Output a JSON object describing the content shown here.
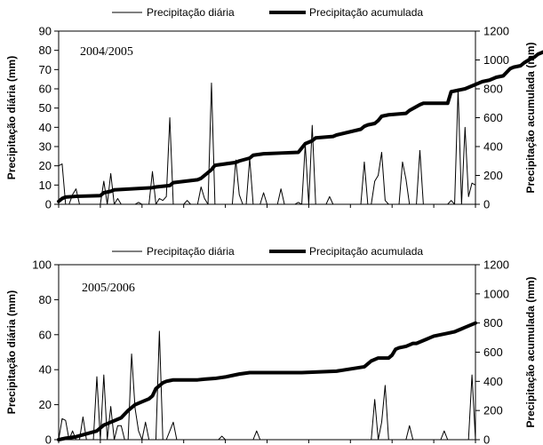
{
  "chart_data": [
    {
      "type": "line",
      "annotation": "2004/2005",
      "ylabel": "Precipitação diária (mm)",
      "y2label": "Precipitação acumulada (mm)",
      "ylim": [
        0,
        90
      ],
      "y_ticks": [
        "0",
        "10",
        "20",
        "30",
        "40",
        "50",
        "60",
        "70",
        "80",
        "90"
      ],
      "y2lim": [
        0,
        1200
      ],
      "y2_ticks": [
        "0",
        "200",
        "400",
        "600",
        "800",
        "1000",
        "1200"
      ],
      "legend_position": "top",
      "x_day_range": [
        0,
        120
      ],
      "series": [
        {
          "name": "Precipitação diária",
          "axis": "left",
          "style": "thin",
          "x": [
            0,
            1,
            2,
            3,
            4,
            5,
            6,
            7,
            8,
            9,
            10,
            11,
            12,
            13,
            14,
            15,
            16,
            17,
            18,
            19,
            20,
            21,
            22,
            23,
            24,
            25,
            26,
            27,
            28,
            29,
            30,
            31,
            32,
            33,
            34,
            35,
            36,
            37,
            38,
            39,
            40,
            41,
            42,
            43,
            44,
            45,
            46,
            47,
            48,
            49,
            50,
            51,
            52,
            53,
            54,
            55,
            56,
            57,
            58,
            59,
            60,
            61,
            62,
            63,
            64,
            65,
            66,
            67,
            68,
            69,
            70,
            71,
            72,
            73,
            74,
            75,
            76,
            77,
            78,
            79,
            80,
            81,
            82,
            83,
            84,
            85,
            86,
            87,
            88,
            89,
            90,
            91,
            92,
            93,
            94,
            95,
            96,
            97,
            98,
            99,
            100,
            101,
            102,
            103,
            104,
            105,
            106,
            107,
            108,
            109,
            110,
            111,
            112,
            113,
            114,
            115,
            116,
            117,
            118,
            119,
            120
          ],
          "values": [
            20,
            21,
            0,
            0,
            5,
            8,
            0,
            0,
            0,
            0,
            0,
            0,
            0,
            12,
            0,
            16,
            0,
            3,
            0,
            0,
            0,
            0,
            0,
            1,
            0,
            0,
            0,
            17,
            0,
            3,
            2,
            4,
            45,
            0,
            0,
            0,
            0,
            2,
            0,
            0,
            0,
            9,
            3,
            0,
            63,
            0,
            0,
            0,
            0,
            0,
            0,
            23,
            5,
            0,
            0,
            24,
            0,
            0,
            0,
            6,
            0,
            0,
            0,
            0,
            8,
            0,
            0,
            0,
            0,
            1,
            0,
            31,
            0,
            41,
            0,
            0,
            0,
            0,
            4,
            0,
            0,
            0,
            0,
            0,
            0,
            0,
            0,
            0,
            22,
            0,
            0,
            12,
            15,
            27,
            2,
            0,
            0,
            0,
            0,
            22,
            13,
            0,
            0,
            0,
            28,
            0,
            0,
            0,
            0,
            0,
            0,
            0,
            0,
            2,
            0,
            60,
            0,
            40,
            4,
            11,
            10
          ]
        },
        {
          "name": "Precipitação acumulada",
          "axis": "right",
          "style": "thick",
          "x": [
            0,
            1,
            2,
            5,
            12,
            13,
            15,
            16,
            27,
            28,
            32,
            33,
            40,
            41,
            44,
            45,
            51,
            52,
            55,
            56,
            59,
            64,
            69,
            70,
            71,
            72,
            73,
            74,
            79,
            80,
            87,
            88,
            89,
            91,
            92,
            93,
            95,
            100,
            101,
            104,
            105,
            112,
            113,
            115,
            116,
            117,
            119,
            120,
            122,
            124,
            126,
            128,
            130,
            131,
            133,
            134,
            136,
            137,
            138,
            139,
            140,
            141,
            142,
            143
          ],
          "values": [
            20,
            40,
            50,
            55,
            60,
            80,
            90,
            100,
            115,
            120,
            130,
            150,
            170,
            180,
            240,
            270,
            290,
            300,
            320,
            340,
            350,
            355,
            360,
            390,
            420,
            430,
            440,
            460,
            470,
            480,
            520,
            540,
            550,
            560,
            580,
            610,
            620,
            630,
            650,
            690,
            700,
            700,
            780,
            790,
            795,
            800,
            820,
            830,
            850,
            860,
            880,
            890,
            940,
            950,
            960,
            980,
            1010,
            1020,
            1040,
            1050,
            1060,
            1070,
            1080,
            1090
          ]
        }
      ]
    },
    {
      "type": "line",
      "annotation": "2005/2006",
      "ylabel": "Precipitação diária (mm)",
      "y2label": "Precipitação acumulada (mm)",
      "ylim": [
        0,
        100
      ],
      "y_ticks": [
        "0",
        "20",
        "40",
        "60",
        "80",
        "100"
      ],
      "y2lim": [
        0,
        1200
      ],
      "y2_ticks": [
        "0",
        "200",
        "400",
        "600",
        "800",
        "1000",
        "1200"
      ],
      "legend_position": "top",
      "x_day_range": [
        0,
        120
      ],
      "series": [
        {
          "name": "Precipitação diária",
          "axis": "left",
          "style": "thin",
          "x": [
            0,
            1,
            2,
            3,
            4,
            5,
            6,
            7,
            8,
            9,
            10,
            11,
            12,
            13,
            14,
            15,
            16,
            17,
            18,
            19,
            20,
            21,
            22,
            23,
            24,
            25,
            26,
            27,
            28,
            29,
            30,
            31,
            32,
            33,
            34,
            35,
            36,
            37,
            38,
            39,
            40,
            41,
            42,
            43,
            44,
            45,
            46,
            47,
            48,
            49,
            50,
            51,
            52,
            53,
            54,
            55,
            56,
            57,
            58,
            59,
            60,
            61,
            62,
            63,
            64,
            65,
            66,
            67,
            68,
            69,
            70,
            71,
            72,
            73,
            74,
            75,
            76,
            77,
            78,
            79,
            80,
            81,
            82,
            83,
            84,
            85,
            86,
            87,
            88,
            89,
            90,
            91,
            92,
            93,
            94,
            95,
            96,
            97,
            98,
            99,
            100,
            101,
            102,
            103,
            104,
            105,
            106,
            107,
            108,
            109,
            110,
            111,
            112,
            113,
            114,
            115,
            116,
            117,
            118,
            119,
            120
          ],
          "values": [
            0,
            12,
            11,
            0,
            5,
            0,
            0,
            13,
            0,
            0,
            0,
            36,
            0,
            37,
            0,
            19,
            0,
            8,
            8,
            0,
            0,
            49,
            18,
            5,
            0,
            10,
            0,
            0,
            0,
            62,
            0,
            0,
            5,
            10,
            0,
            0,
            0,
            0,
            0,
            0,
            0,
            0,
            0,
            0,
            0,
            0,
            0,
            2,
            0,
            0,
            0,
            0,
            0,
            0,
            0,
            0,
            0,
            5,
            0,
            0,
            0,
            0,
            0,
            0,
            0,
            0,
            0,
            0,
            0,
            0,
            0,
            0,
            0,
            0,
            0,
            0,
            0,
            0,
            0,
            0,
            0,
            0,
            0,
            0,
            0,
            0,
            0,
            0,
            0,
            0,
            0,
            23,
            0,
            10,
            31,
            0,
            0,
            0,
            0,
            0,
            0,
            8,
            0,
            0,
            0,
            0,
            0,
            0,
            0,
            0,
            0,
            5,
            0,
            0,
            0,
            0,
            0,
            0,
            0,
            37,
            0
          ]
        },
        {
          "name": "Precipitação acumulada",
          "axis": "right",
          "style": "thick",
          "x": [
            0,
            2,
            5,
            8,
            11,
            13,
            15,
            18,
            20,
            22,
            24,
            26,
            27,
            28,
            30,
            31,
            32,
            33,
            40,
            42,
            45,
            48,
            50,
            52,
            55,
            57,
            60,
            63,
            65,
            70,
            80,
            88,
            90,
            92,
            95,
            96,
            97,
            98,
            100,
            101,
            102,
            103,
            104,
            105,
            106,
            107,
            108,
            110,
            112,
            114,
            115,
            116,
            117,
            118,
            119,
            120
          ],
          "values": [
            0,
            10,
            20,
            40,
            60,
            100,
            120,
            150,
            200,
            240,
            260,
            280,
            300,
            350,
            390,
            400,
            405,
            410,
            410,
            415,
            420,
            430,
            440,
            450,
            460,
            460,
            460,
            460,
            460,
            460,
            470,
            500,
            540,
            560,
            560,
            580,
            620,
            630,
            640,
            650,
            660,
            660,
            670,
            680,
            690,
            700,
            710,
            720,
            730,
            740,
            750,
            760,
            770,
            780,
            790,
            800
          ]
        }
      ]
    }
  ]
}
